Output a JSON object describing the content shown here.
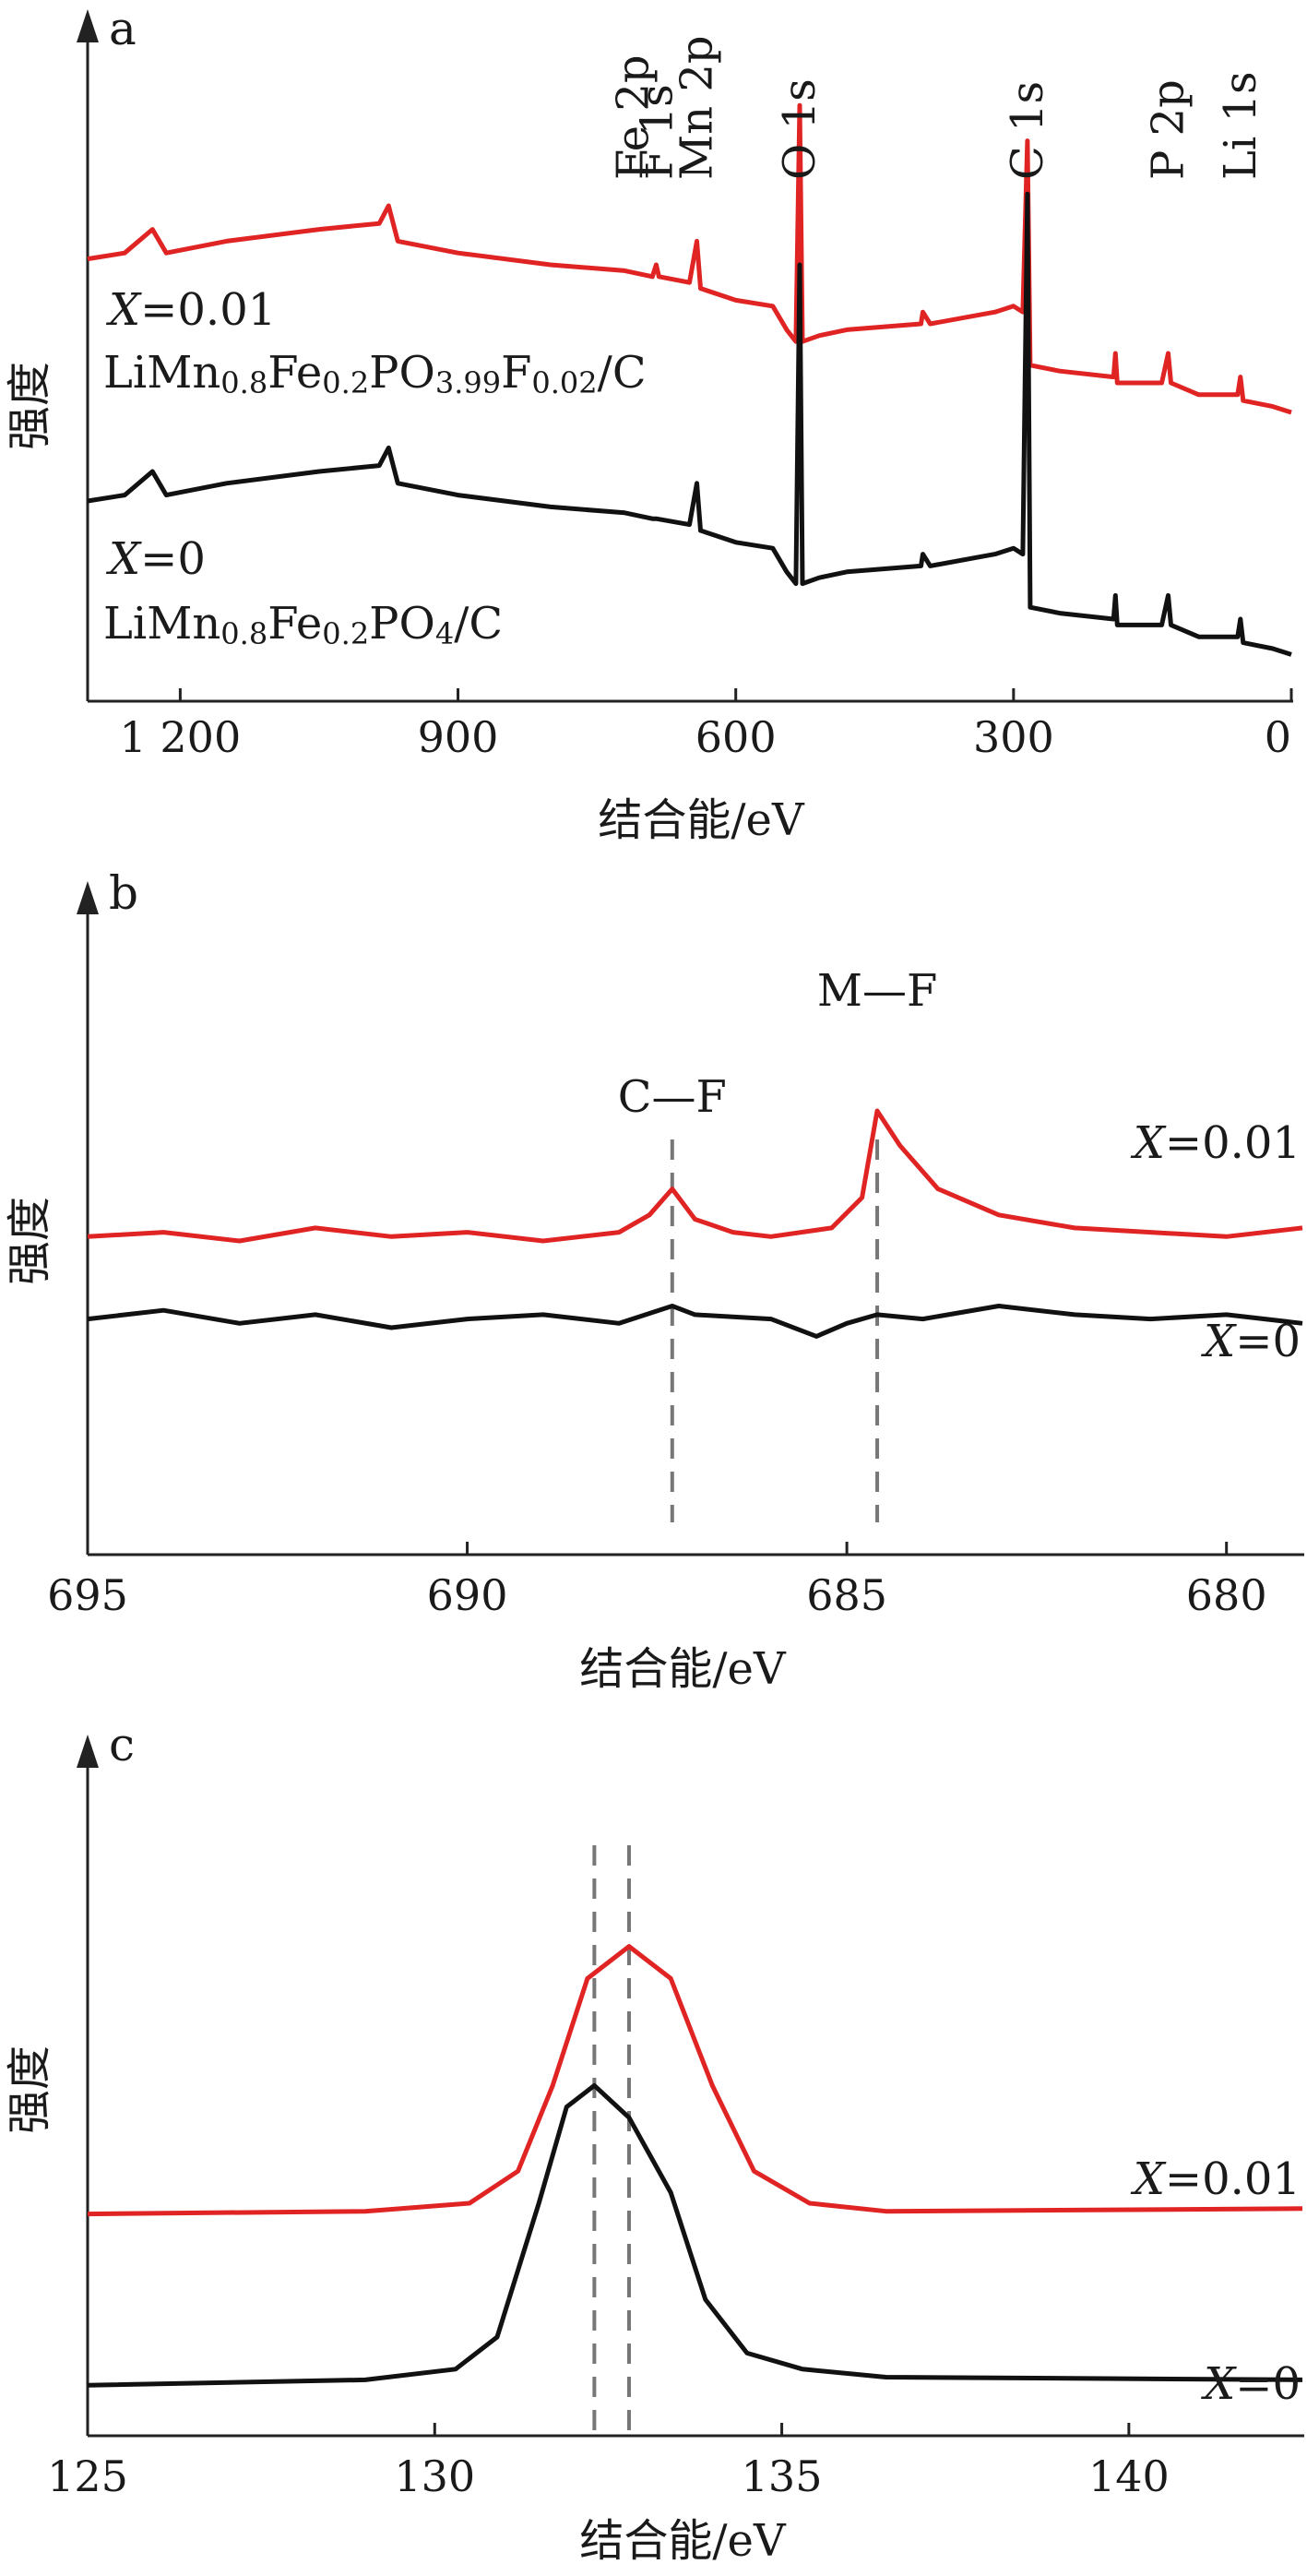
{
  "colors": {
    "red": "#e02424",
    "black": "#111111",
    "axis": "#222222",
    "guide": "#777777"
  },
  "chart_data": [
    {
      "panel": "a",
      "type": "line",
      "ylabel": "强度",
      "xlabel": "结合能/eV",
      "x_reversed": true,
      "xlim": [
        1300,
        0
      ],
      "x_ticks": [
        {
          "v": 1200,
          "label": "1 200"
        },
        {
          "v": 900,
          "label": "900"
        },
        {
          "v": 600,
          "label": "600"
        },
        {
          "v": 300,
          "label": "300"
        },
        {
          "v": 0,
          "label": "0"
        }
      ],
      "ylim": [
        0,
        100
      ],
      "peak_labels": [
        {
          "text": "Fe 2p",
          "x": 711
        },
        {
          "text": "F 1s",
          "x": 685
        },
        {
          "text": "Mn 2p",
          "x": 642
        },
        {
          "text": "O 1s",
          "x": 531
        },
        {
          "text": "C 1s",
          "x": 285
        },
        {
          "text": "P 2p",
          "x": 133
        },
        {
          "text": "Li 1s",
          "x": 55
        }
      ],
      "series": [
        {
          "name": "X=0.01",
          "composition": "LiMn0.8Fe0.2PO3.99F0.02/C",
          "color": "red",
          "points": [
            [
              1300,
              71
            ],
            [
              1260,
              72
            ],
            [
              1230,
              76
            ],
            [
              1215,
              72
            ],
            [
              1150,
              74
            ],
            [
              1050,
              76
            ],
            [
              985,
              77
            ],
            [
              975,
              80
            ],
            [
              965,
              74
            ],
            [
              900,
              72
            ],
            [
              800,
              70
            ],
            [
              720,
              69
            ],
            [
              690,
              68
            ],
            [
              686,
              70
            ],
            [
              683,
              68
            ],
            [
              650,
              67
            ],
            [
              642,
              74
            ],
            [
              638,
              66
            ],
            [
              600,
              64
            ],
            [
              560,
              63
            ],
            [
              545,
              59
            ],
            [
              535,
              57
            ],
            [
              531,
              97
            ],
            [
              528,
              57
            ],
            [
              510,
              58
            ],
            [
              480,
              59
            ],
            [
              400,
              60
            ],
            [
              398,
              62
            ],
            [
              390,
              60
            ],
            [
              320,
              62
            ],
            [
              300,
              63
            ],
            [
              290,
              62
            ],
            [
              285,
              91
            ],
            [
              282,
              53
            ],
            [
              250,
              52
            ],
            [
              192,
              51
            ],
            [
              190,
              55
            ],
            [
              188,
              50
            ],
            [
              140,
              50
            ],
            [
              133,
              55
            ],
            [
              130,
              50
            ],
            [
              100,
              48
            ],
            [
              58,
              48
            ],
            [
              55,
              51
            ],
            [
              52,
              47
            ],
            [
              20,
              46
            ],
            [
              0,
              45
            ]
          ]
        },
        {
          "name": "X=0",
          "composition": "LiMn0.8Fe0.2PO4/C",
          "color": "black",
          "points": [
            [
              1300,
              30
            ],
            [
              1260,
              31
            ],
            [
              1230,
              35
            ],
            [
              1215,
              31
            ],
            [
              1150,
              33
            ],
            [
              1050,
              35
            ],
            [
              985,
              36
            ],
            [
              975,
              39
            ],
            [
              965,
              33
            ],
            [
              900,
              31
            ],
            [
              800,
              29
            ],
            [
              720,
              28
            ],
            [
              690,
              27
            ],
            [
              686,
              27
            ],
            [
              650,
              26
            ],
            [
              642,
              33
            ],
            [
              638,
              25
            ],
            [
              600,
              23
            ],
            [
              560,
              22
            ],
            [
              545,
              18
            ],
            [
              535,
              16
            ],
            [
              531,
              70
            ],
            [
              528,
              16
            ],
            [
              510,
              17
            ],
            [
              480,
              18
            ],
            [
              400,
              19
            ],
            [
              398,
              21
            ],
            [
              390,
              19
            ],
            [
              320,
              21
            ],
            [
              300,
              22
            ],
            [
              290,
              21
            ],
            [
              285,
              82
            ],
            [
              282,
              12
            ],
            [
              250,
              11
            ],
            [
              192,
              10
            ],
            [
              190,
              14
            ],
            [
              188,
              9
            ],
            [
              140,
              9
            ],
            [
              133,
              14
            ],
            [
              130,
              9
            ],
            [
              100,
              7
            ],
            [
              58,
              7
            ],
            [
              55,
              10
            ],
            [
              52,
              6
            ],
            [
              20,
              5
            ],
            [
              0,
              4
            ]
          ]
        }
      ]
    },
    {
      "panel": "b",
      "type": "line",
      "ylabel": "强度",
      "xlabel": "结合能/eV",
      "x_reversed": true,
      "xlim": [
        695,
        679
      ],
      "x_ticks": [
        {
          "v": 695,
          "label": "695"
        },
        {
          "v": 690,
          "label": "690"
        },
        {
          "v": 685,
          "label": "685"
        },
        {
          "v": 680,
          "label": "680"
        }
      ],
      "ylim": [
        0,
        100
      ],
      "peak_labels": [
        {
          "text": "C—F",
          "x": 687.3
        },
        {
          "text": "M—F",
          "x": 684.6
        }
      ],
      "guides": [
        687.3,
        684.6
      ],
      "series": [
        {
          "name": "X=0.01",
          "color": "red",
          "points": [
            [
              695,
              51
            ],
            [
              694,
              52
            ],
            [
              693,
              50
            ],
            [
              692,
              53
            ],
            [
              691,
              51
            ],
            [
              690,
              52
            ],
            [
              689,
              50
            ],
            [
              688,
              52
            ],
            [
              687.6,
              56
            ],
            [
              687.3,
              62
            ],
            [
              687.0,
              55
            ],
            [
              686.5,
              52
            ],
            [
              686,
              51
            ],
            [
              685.2,
              53
            ],
            [
              684.8,
              60
            ],
            [
              684.6,
              80
            ],
            [
              684.3,
              72
            ],
            [
              683.8,
              62
            ],
            [
              683,
              56
            ],
            [
              682,
              53
            ],
            [
              681,
              52
            ],
            [
              680,
              51
            ],
            [
              679,
              53
            ]
          ]
        },
        {
          "name": "X=0",
          "color": "black",
          "points": [
            [
              695,
              32
            ],
            [
              694,
              34
            ],
            [
              693,
              31
            ],
            [
              692,
              33
            ],
            [
              691,
              30
            ],
            [
              690,
              32
            ],
            [
              689,
              33
            ],
            [
              688,
              31
            ],
            [
              687.3,
              35
            ],
            [
              687,
              33
            ],
            [
              686,
              32
            ],
            [
              685.4,
              28
            ],
            [
              685,
              31
            ],
            [
              684.6,
              33
            ],
            [
              684,
              32
            ],
            [
              683,
              35
            ],
            [
              682,
              33
            ],
            [
              681,
              32
            ],
            [
              680,
              33
            ],
            [
              679,
              31
            ]
          ]
        }
      ]
    },
    {
      "panel": "c",
      "type": "line",
      "ylabel": "强度",
      "xlabel": "结合能/eV",
      "x_reversed": false,
      "xlim": [
        125,
        142.5
      ],
      "x_ticks": [
        {
          "v": 125,
          "label": "125"
        },
        {
          "v": 130,
          "label": "130"
        },
        {
          "v": 135,
          "label": "135"
        },
        {
          "v": 140,
          "label": "140"
        }
      ],
      "ylim": [
        0,
        100
      ],
      "guides": [
        132.3,
        132.8
      ],
      "series": [
        {
          "name": "X=0.01",
          "color": "red",
          "points": [
            [
              125,
              38
            ],
            [
              129,
              38.5
            ],
            [
              130.5,
              40
            ],
            [
              131.2,
              46
            ],
            [
              131.7,
              62
            ],
            [
              132.2,
              82
            ],
            [
              132.8,
              88
            ],
            [
              133.4,
              82
            ],
            [
              134,
              62
            ],
            [
              134.6,
              46
            ],
            [
              135.4,
              40
            ],
            [
              136.5,
              38.5
            ],
            [
              142.5,
              39
            ]
          ]
        },
        {
          "name": "X=0",
          "color": "black",
          "points": [
            [
              125,
              6
            ],
            [
              129,
              7
            ],
            [
              130.3,
              9
            ],
            [
              130.9,
              15
            ],
            [
              131.5,
              40
            ],
            [
              131.9,
              58
            ],
            [
              132.3,
              62
            ],
            [
              132.8,
              56
            ],
            [
              133.4,
              42
            ],
            [
              133.9,
              22
            ],
            [
              134.5,
              12
            ],
            [
              135.3,
              9
            ],
            [
              136.5,
              7.5
            ],
            [
              142.5,
              7
            ]
          ]
        }
      ]
    }
  ]
}
